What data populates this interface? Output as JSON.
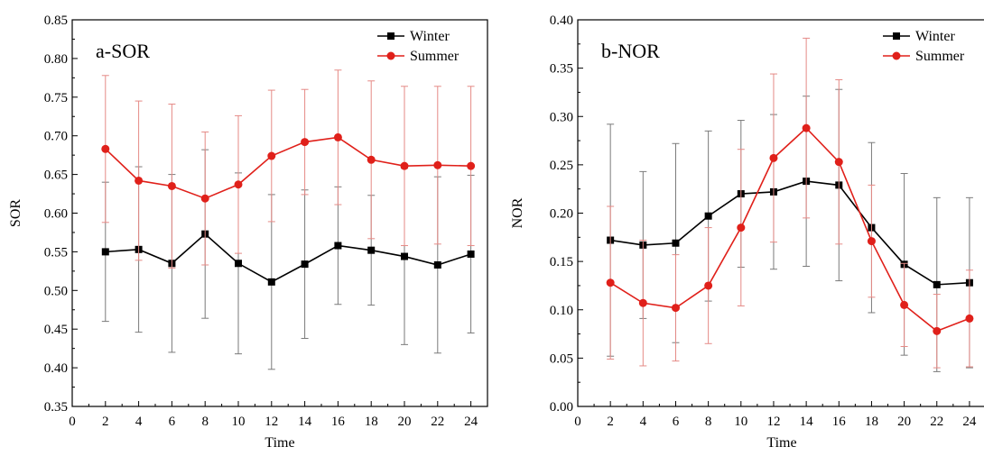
{
  "caption_fragment": "",
  "chart_data": [
    {
      "type": "line",
      "panel_label": "a-SOR",
      "xlabel": "Time",
      "ylabel": "SOR",
      "xlim": [
        0,
        25
      ],
      "ylim": [
        0.35,
        0.85
      ],
      "x_ticks": [
        0,
        2,
        4,
        6,
        8,
        10,
        12,
        14,
        16,
        18,
        20,
        22,
        24
      ],
      "y_ticks": [
        0.35,
        0.4,
        0.45,
        0.5,
        0.55,
        0.6,
        0.65,
        0.7,
        0.75,
        0.8,
        0.85
      ],
      "x": [
        2,
        4,
        6,
        8,
        10,
        12,
        14,
        16,
        18,
        20,
        22,
        24
      ],
      "legend_position": "top-right",
      "series": [
        {
          "name": "Winter",
          "color": "#000000",
          "marker": "square",
          "values": [
            0.55,
            0.553,
            0.535,
            0.573,
            0.535,
            0.511,
            0.534,
            0.558,
            0.552,
            0.544,
            0.533,
            0.547
          ],
          "error": [
            0.09,
            0.107,
            0.115,
            0.109,
            0.117,
            0.113,
            0.096,
            0.076,
            0.071,
            0.114,
            0.114,
            0.102
          ]
        },
        {
          "name": "Summer",
          "color": "#e0201a",
          "marker": "circle",
          "values": [
            0.683,
            0.642,
            0.635,
            0.619,
            0.637,
            0.674,
            0.692,
            0.698,
            0.669,
            0.661,
            0.662,
            0.661
          ],
          "error": [
            0.095,
            0.103,
            0.106,
            0.086,
            0.089,
            0.085,
            0.068,
            0.087,
            0.102,
            0.103,
            0.102,
            0.103
          ]
        }
      ]
    },
    {
      "type": "line",
      "panel_label": "b-NOR",
      "xlabel": "Time",
      "ylabel": "NOR",
      "xlim": [
        0,
        25
      ],
      "ylim": [
        0.0,
        0.4
      ],
      "x_ticks": [
        0,
        2,
        4,
        6,
        8,
        10,
        12,
        14,
        16,
        18,
        20,
        22,
        24
      ],
      "y_ticks": [
        0.0,
        0.05,
        0.1,
        0.15,
        0.2,
        0.25,
        0.3,
        0.35,
        0.4
      ],
      "x": [
        2,
        4,
        6,
        8,
        10,
        12,
        14,
        16,
        18,
        20,
        22,
        24
      ],
      "legend_position": "top-right",
      "series": [
        {
          "name": "Winter",
          "color": "#000000",
          "marker": "square",
          "values": [
            0.172,
            0.167,
            0.169,
            0.197,
            0.22,
            0.222,
            0.233,
            0.229,
            0.185,
            0.147,
            0.126,
            0.128
          ],
          "error": [
            0.12,
            0.076,
            0.103,
            0.088,
            0.076,
            0.08,
            0.088,
            0.099,
            0.088,
            0.094,
            0.09,
            0.088
          ]
        },
        {
          "name": "Summer",
          "color": "#e0201a",
          "marker": "circle",
          "values": [
            0.128,
            0.107,
            0.102,
            0.125,
            0.185,
            0.257,
            0.288,
            0.253,
            0.171,
            0.105,
            0.078,
            0.091
          ],
          "error": [
            0.079,
            0.065,
            0.055,
            0.06,
            0.081,
            0.087,
            0.093,
            0.085,
            0.058,
            0.043,
            0.038,
            0.05
          ]
        }
      ]
    }
  ]
}
